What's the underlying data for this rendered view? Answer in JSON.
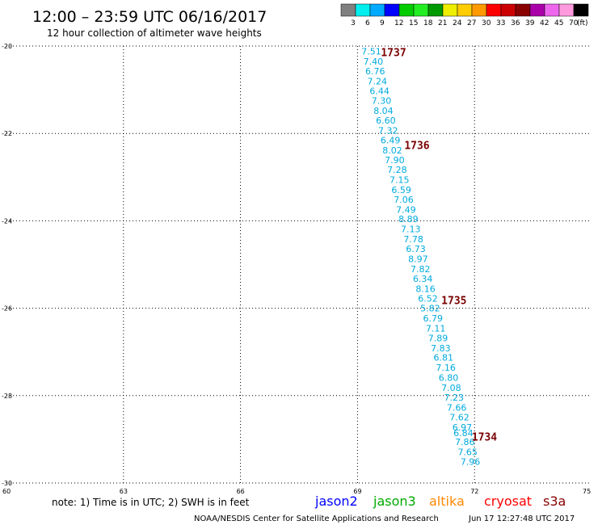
{
  "header": {
    "title": "12:00 – 23:59 UTC 06/16/2017",
    "subtitle": "12 hour collection of altimeter wave heights"
  },
  "scale": {
    "unit": "(ft)",
    "boxes": [
      {
        "color": "#808080"
      },
      {
        "color": "#00eeee"
      },
      {
        "color": "#00aaff"
      },
      {
        "color": "#0000ff"
      },
      {
        "color": "#00cc00"
      },
      {
        "color": "#22ee22"
      },
      {
        "color": "#009900"
      },
      {
        "color": "#eeee00"
      },
      {
        "color": "#ffcc00"
      },
      {
        "color": "#ff9900"
      },
      {
        "color": "#ff0000"
      },
      {
        "color": "#cc0000"
      },
      {
        "color": "#880000"
      },
      {
        "color": "#aa00aa"
      },
      {
        "color": "#ee66ee"
      },
      {
        "color": "#ff99dd"
      },
      {
        "color": "#000000"
      }
    ],
    "labels": [
      "3",
      "6",
      "9",
      "12",
      "15",
      "18",
      "21",
      "24",
      "27",
      "30",
      "33",
      "36",
      "39",
      "42",
      "45",
      "70"
    ]
  },
  "chart_data": {
    "type": "scatter",
    "title": "12:00 – 23:59 UTC 06/16/2017",
    "subtitle": "12 hour collection of altimeter wave heights",
    "xlim": [
      60,
      75
    ],
    "ylim": [
      -30,
      -20
    ],
    "xticks": [
      "60",
      "63",
      "66",
      "69",
      "72",
      "75"
    ],
    "yticks": [
      "-20",
      "-22",
      "-24",
      "-26",
      "-28",
      "-30"
    ],
    "xtick_values": [
      60,
      63,
      66,
      69,
      72,
      75
    ],
    "ytick_values": [
      -20,
      -22,
      -24,
      -26,
      -28,
      -30
    ],
    "grid": true,
    "value_color": "#00aadd",
    "time_color": "#7a0000",
    "points": [
      {
        "lon": 69.1,
        "lat": -20.12,
        "swh": "7.51"
      },
      {
        "lon": 69.15,
        "lat": -20.35,
        "swh": "7.40"
      },
      {
        "lon": 69.2,
        "lat": -20.57,
        "swh": "6.76"
      },
      {
        "lon": 69.25,
        "lat": -20.8,
        "swh": "7.24"
      },
      {
        "lon": 69.31,
        "lat": -21.03,
        "swh": "6.44"
      },
      {
        "lon": 69.36,
        "lat": -21.25,
        "swh": "7.30"
      },
      {
        "lon": 69.41,
        "lat": -21.48,
        "swh": "8.04"
      },
      {
        "lon": 69.47,
        "lat": -21.7,
        "swh": "6.60"
      },
      {
        "lon": 69.53,
        "lat": -21.93,
        "swh": "7.32"
      },
      {
        "lon": 69.59,
        "lat": -22.15,
        "swh": "6.49"
      },
      {
        "lon": 69.64,
        "lat": -22.38,
        "swh": "8.02"
      },
      {
        "lon": 69.7,
        "lat": -22.61,
        "swh": "7.90"
      },
      {
        "lon": 69.76,
        "lat": -22.83,
        "swh": "7.28"
      },
      {
        "lon": 69.82,
        "lat": -23.06,
        "swh": "7.15"
      },
      {
        "lon": 69.87,
        "lat": -23.29,
        "swh": "6.59"
      },
      {
        "lon": 69.93,
        "lat": -23.51,
        "swh": "7.06"
      },
      {
        "lon": 69.99,
        "lat": -23.74,
        "swh": "7.49"
      },
      {
        "lon": 70.05,
        "lat": -23.96,
        "swh": "8.89"
      },
      {
        "lon": 70.11,
        "lat": -24.19,
        "swh": "7.13"
      },
      {
        "lon": 70.18,
        "lat": -24.42,
        "swh": "7.78"
      },
      {
        "lon": 70.24,
        "lat": -24.64,
        "swh": "6.73"
      },
      {
        "lon": 70.3,
        "lat": -24.87,
        "swh": "8.97"
      },
      {
        "lon": 70.36,
        "lat": -25.1,
        "swh": "7.82"
      },
      {
        "lon": 70.42,
        "lat": -25.32,
        "swh": "6.34"
      },
      {
        "lon": 70.49,
        "lat": -25.55,
        "swh": "8.16"
      },
      {
        "lon": 70.55,
        "lat": -25.78,
        "swh": "6.52"
      },
      {
        "lon": 70.61,
        "lat": -26.0,
        "swh": "5.82"
      },
      {
        "lon": 70.68,
        "lat": -26.23,
        "swh": "6.79"
      },
      {
        "lon": 70.75,
        "lat": -26.46,
        "swh": "7.11"
      },
      {
        "lon": 70.81,
        "lat": -26.68,
        "swh": "7.89"
      },
      {
        "lon": 70.88,
        "lat": -26.91,
        "swh": "7.83"
      },
      {
        "lon": 70.95,
        "lat": -27.13,
        "swh": "6.81"
      },
      {
        "lon": 71.01,
        "lat": -27.36,
        "swh": "7.16"
      },
      {
        "lon": 71.08,
        "lat": -27.59,
        "swh": "6.80"
      },
      {
        "lon": 71.15,
        "lat": -27.82,
        "swh": "7.08"
      },
      {
        "lon": 71.22,
        "lat": -28.04,
        "swh": "7.23"
      },
      {
        "lon": 71.29,
        "lat": -28.27,
        "swh": "7.66"
      },
      {
        "lon": 71.36,
        "lat": -28.49,
        "swh": "7.62"
      },
      {
        "lon": 71.43,
        "lat": -28.72,
        "swh": "6.97"
      },
      {
        "lon": 71.46,
        "lat": -28.85,
        "swh": "6.84"
      },
      {
        "lon": 71.5,
        "lat": -29.06,
        "swh": "7.86"
      },
      {
        "lon": 71.57,
        "lat": -29.29,
        "swh": "7.65"
      },
      {
        "lon": 71.64,
        "lat": -29.51,
        "swh": "7.96"
      }
    ],
    "times": [
      {
        "lon": 69.6,
        "lat": -20.14,
        "label": "1737"
      },
      {
        "lon": 70.2,
        "lat": -22.26,
        "label": "1736"
      },
      {
        "lon": 71.15,
        "lat": -25.81,
        "label": "1735"
      },
      {
        "lon": 71.93,
        "lat": -28.94,
        "label": "1734"
      }
    ]
  },
  "footer": {
    "note": "note: 1) Time is in UTC; 2) SWH is in feet",
    "satellites": [
      {
        "name": "jason2",
        "color": "#0000ff"
      },
      {
        "name": "jason3",
        "color": "#00aa00"
      },
      {
        "name": "altika",
        "color": "#ff8800"
      },
      {
        "name": "cryosat",
        "color": "#ff0000"
      },
      {
        "name": "s3a",
        "color": "#880000"
      }
    ],
    "credit": "NOAA/NESDIS Center for Satellite Applications and Research",
    "timestamp": "Jun 17 12:27:48 UTC 2017"
  }
}
